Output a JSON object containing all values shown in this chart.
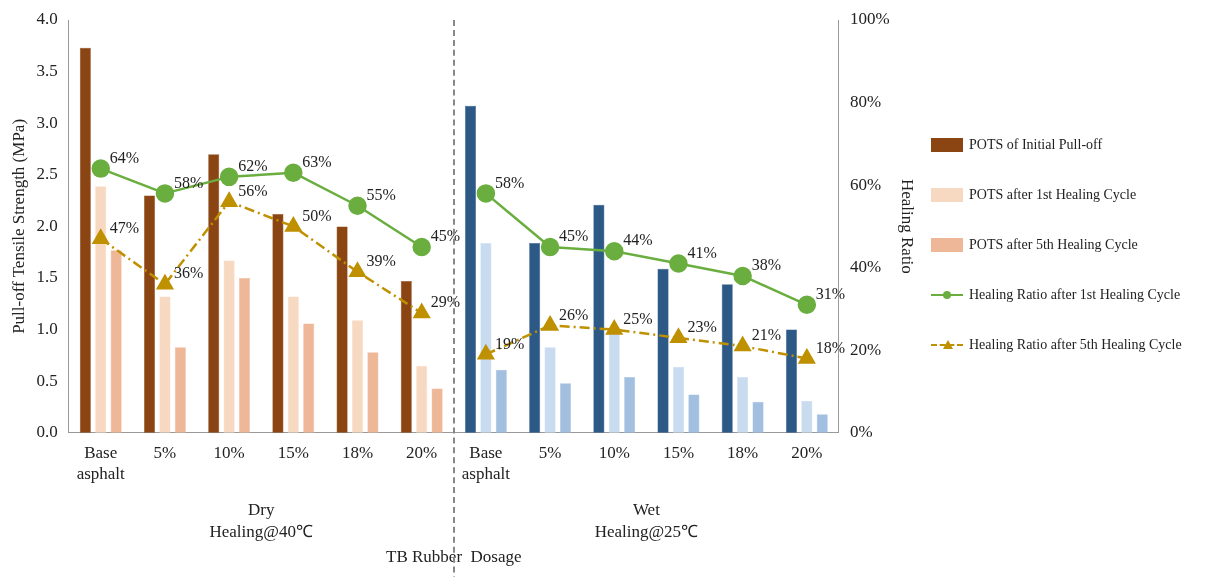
{
  "chart_data": {
    "type": "bar",
    "xlabel": "TB Rubber  Dosage",
    "ylabel": "Pull-off Tensile Strength (MPa)",
    "y2label": "Healing Ratio",
    "categories": [
      "Base asphalt",
      "5%",
      "10%",
      "15%",
      "18%",
      "20%",
      "Base asphalt",
      "5%",
      "10%",
      "15%",
      "18%",
      "20%"
    ],
    "annotations": [
      "Dry\nHealing@40℃",
      "Wet\nHealing@25℃"
    ],
    "series": [
      {
        "name": "POTS of Initial Pull-off",
        "color": "#8b4513",
        "colors": [
          "#8b4513",
          "#8b4513",
          "#8b4513",
          "#8b4513",
          "#8b4513",
          "#8b4513",
          "#2d5986",
          "#2d5986",
          "#2d5986",
          "#2d5986",
          "#2d5986",
          "#2d5986"
        ],
        "values": [
          3.73,
          2.3,
          2.7,
          2.12,
          2.0,
          1.47,
          3.17,
          1.84,
          2.21,
          1.59,
          1.44,
          1.0
        ]
      },
      {
        "name": "POTS after 1st Healing Cycle",
        "color": "#f7d9c2",
        "colors": [
          "#f7d9c2",
          "#f7d9c2",
          "#f7d9c2",
          "#f7d9c2",
          "#f7d9c2",
          "#f7d9c2",
          "#c9dbef",
          "#c9dbef",
          "#c9dbef",
          "#c9dbef",
          "#c9dbef",
          "#c9dbef"
        ],
        "values": [
          2.39,
          1.32,
          1.67,
          1.32,
          1.09,
          0.65,
          1.84,
          0.83,
          0.97,
          0.64,
          0.54,
          0.31
        ]
      },
      {
        "name": "POTS after 5th Healing Cycle",
        "color": "#eeb898",
        "colors": [
          "#eeb898",
          "#eeb898",
          "#eeb898",
          "#eeb898",
          "#eeb898",
          "#eeb898",
          "#a3bfe0",
          "#a3bfe0",
          "#a3bfe0",
          "#a3bfe0",
          "#a3bfe0",
          "#a3bfe0"
        ],
        "values": [
          1.77,
          0.83,
          1.5,
          1.06,
          0.78,
          0.43,
          0.61,
          0.48,
          0.54,
          0.37,
          0.3,
          0.18
        ]
      },
      {
        "name": "Healing Ratio after 1st Healing Cycle",
        "type": "line",
        "axis": "y2",
        "color": "#6aae3f",
        "marker": "circle",
        "line_style": "solid",
        "values": [
          64,
          58,
          62,
          63,
          55,
          45,
          null,
          null,
          null,
          null,
          null,
          null
        ],
        "value_labels": [
          "64%",
          "58%",
          "62%",
          "63%",
          "55%",
          "45%",
          null,
          null,
          null,
          null,
          null,
          null
        ]
      },
      {
        "type": "line",
        "axis": "y2",
        "color": "#6aae3f",
        "marker": "circle",
        "line_style": "solid",
        "values": [
          null,
          null,
          null,
          null,
          null,
          null,
          58,
          45,
          44,
          41,
          38,
          31
        ],
        "value_labels": [
          null,
          null,
          null,
          null,
          null,
          null,
          "58%",
          "45%",
          "44%",
          "41%",
          "38%",
          "31%"
        ]
      },
      {
        "name": "Healing Ratio after 5th Healing Cycle",
        "type": "line",
        "axis": "y2",
        "color": "#bf9000",
        "marker": "triangle",
        "line_style": "dashed",
        "values": [
          47,
          36,
          56,
          50,
          39,
          29,
          null,
          null,
          null,
          null,
          null,
          null
        ],
        "value_labels": [
          "47%",
          "36%",
          "56%",
          "50%",
          "39%",
          "29%",
          null,
          null,
          null,
          null,
          null,
          null
        ]
      },
      {
        "type": "line",
        "axis": "y2",
        "color": "#bf9000",
        "marker": "triangle",
        "line_style": "dashed",
        "values": [
          null,
          null,
          null,
          null,
          null,
          null,
          19,
          26,
          25,
          23,
          21,
          18
        ],
        "value_labels": [
          null,
          null,
          null,
          null,
          null,
          null,
          "19%",
          "26%",
          "25%",
          "23%",
          "21%",
          "18%"
        ]
      }
    ],
    "ylim": [
      0,
      4
    ],
    "yticks": [
      {
        "value": 0,
        "label": "0.0"
      },
      {
        "value": 0.5,
        "label": "0.5"
      },
      {
        "value": 1,
        "label": "1.0"
      },
      {
        "value": 1.5,
        "label": "1.5"
      },
      {
        "value": 2,
        "label": "2.0"
      },
      {
        "value": 2.5,
        "label": "2.5"
      },
      {
        "value": 3,
        "label": "3.0"
      },
      {
        "value": 3.5,
        "label": "3.5"
      },
      {
        "value": 4,
        "label": "4.0"
      }
    ],
    "y2lim": [
      0,
      100
    ],
    "y2ticks": [
      {
        "value": 0,
        "label": "0%"
      },
      {
        "value": 20,
        "label": "20%"
      },
      {
        "value": 40,
        "label": "40%"
      },
      {
        "value": 60,
        "label": "60%"
      },
      {
        "value": 80,
        "label": "80%"
      },
      {
        "value": 100,
        "label": "100%"
      }
    ],
    "legend": "right"
  }
}
